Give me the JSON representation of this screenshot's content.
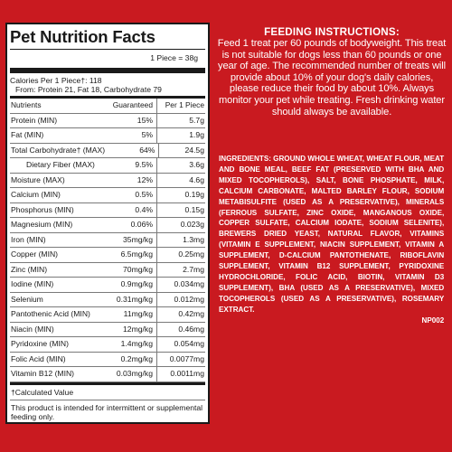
{
  "nutrition": {
    "title": "Pet Nutrition Facts",
    "serving": "1 Piece = 38g",
    "calories": "Calories Per 1 Piece†: 118",
    "calories_from": "From: Protein 21, Fat 18, Carbohydrate 79",
    "headers": {
      "name": "Nutrients",
      "guaranteed": "Guaranteed",
      "per": "Per 1 Piece"
    },
    "rows": [
      {
        "name": "Protein (MIN)",
        "g": "15%",
        "p": "5.7g",
        "indent": false
      },
      {
        "name": "Fat (MIN)",
        "g": "5%",
        "p": "1.9g",
        "indent": false
      },
      {
        "name": "Total Carbohydrate† (MAX)",
        "g": "64%",
        "p": "24.5g",
        "indent": false
      },
      {
        "name": "Dietary Fiber (MAX)",
        "g": "9.5%",
        "p": "3.6g",
        "indent": true
      },
      {
        "name": "Moisture (MAX)",
        "g": "12%",
        "p": "4.6g",
        "indent": false
      },
      {
        "name": "Calcium (MIN)",
        "g": "0.5%",
        "p": "0.19g",
        "indent": false
      },
      {
        "name": "Phosphorus (MIN)",
        "g": "0.4%",
        "p": "0.15g",
        "indent": false
      },
      {
        "name": "Magnesium (MIN)",
        "g": "0.06%",
        "p": "0.023g",
        "indent": false
      },
      {
        "name": "Iron (MIN)",
        "g": "35mg/kg",
        "p": "1.3mg",
        "indent": false
      },
      {
        "name": "Copper (MIN)",
        "g": "6.5mg/kg",
        "p": "0.25mg",
        "indent": false
      },
      {
        "name": "Zinc (MIN)",
        "g": "70mg/kg",
        "p": "2.7mg",
        "indent": false
      },
      {
        "name": "Iodine (MIN)",
        "g": "0.9mg/kg",
        "p": "0.034mg",
        "indent": false
      },
      {
        "name": "Selenium",
        "g": "0.31mg/kg",
        "p": "0.012mg",
        "indent": false
      },
      {
        "name": "Pantothenic Acid (MIN)",
        "g": "11mg/kg",
        "p": "0.42mg",
        "indent": false
      },
      {
        "name": "Niacin (MIN)",
        "g": "12mg/kg",
        "p": "0.46mg",
        "indent": false
      },
      {
        "name": "Pyridoxine (MIN)",
        "g": "1.4mg/kg",
        "p": "0.054mg",
        "indent": false
      },
      {
        "name": "Folic Acid (MIN)",
        "g": "0.2mg/kg",
        "p": "0.0077mg",
        "indent": false
      },
      {
        "name": "Vitamin B12 (MIN)",
        "g": "0.03mg/kg",
        "p": "0.0011mg",
        "indent": false
      }
    ],
    "footnote": "†Calculated Value",
    "disclaimer": "This product is intended for intermittent or supplemental feeding only."
  },
  "feeding": {
    "title": "FEEDING INSTRUCTIONS:",
    "text": "Feed 1 treat per 60 pounds of bodyweight. This treat is not suitable for dogs less than 60 pounds or one year of age. The recommended number of treats will provide about 10% of your dog's daily calories, please reduce their food by about 10%. Always monitor your pet while treating. Fresh drinking water should always be available."
  },
  "ingredients": {
    "label": "INGREDIENTS:",
    "text": "GROUND WHOLE WHEAT, WHEAT FLOUR, MEAT AND BONE MEAL, BEEF FAT (PRESERVED WITH BHA AND MIXED TOCOPHEROLS), SALT, BONE PHOSPHATE, MILK, CALCIUM CARBONATE, MALTED BARLEY FLOUR, SODIUM METABISULFITE (USED AS A PRESERVATIVE), MINERALS (FERROUS SULFATE, ZINC OXIDE, MANGANOUS OXIDE, COPPER SULFATE, CALCIUM IODATE, SODIUM SELENITE), BREWERS DRIED YEAST, NATURAL FLAVOR, VITAMINS (VITAMIN E SUPPLEMENT, NIACIN SUPPLEMENT, VITAMIN A SUPPLEMENT, D-CALCIUM PANTOTHENATE, RIBOFLAVIN SUPPLEMENT, VITAMIN B12 SUPPLEMENT, PYRIDOXINE HYDROCHLORIDE, FOLIC ACID, BIOTIN, VITAMIN D3 SUPPLEMENT), BHA (USED AS A PRESERVATIVE), MIXED TOCOPHEROLS (USED AS A PRESERVATIVE), ROSEMARY EXTRACT.",
    "code": "NP002"
  },
  "colors": {
    "background": "#c91a20",
    "panel": "#ffffff",
    "text_on_red": "#ffffff"
  }
}
